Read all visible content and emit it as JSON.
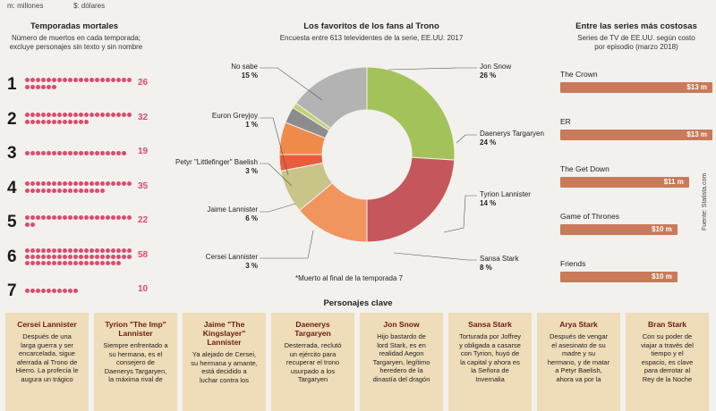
{
  "top_units": [
    "m: millones",
    "$: dólares"
  ],
  "left": {
    "title": "Temporadas mortales",
    "subtitle": [
      "Número de muertos en cada temporada;",
      "excluye personajes sin texto y sin nombre"
    ]
  },
  "center": {
    "title": "Los favoritos de los fans al Trono",
    "subtitle": "Encuesta entre 613 televidentes de la serie, EE.UU. 2017",
    "footnote": "*Muerto al final de la temporada 7"
  },
  "right": {
    "title": "Entre las series más costosas",
    "subtitle": [
      "Series de TV de EE.UU. según costo",
      "por episodio (marzo 2018)"
    ],
    "source": "Fuente: Statista.com"
  },
  "characters_title": "Personajes clave",
  "cards": [
    {
      "name": [
        "Cersei Lannister"
      ],
      "desc": [
        "Después de una",
        "larga guerra y ser",
        "encarcelada, sigue",
        "aferrada al Trono de",
        "Hierro. La profecía le",
        "augura un trágico"
      ]
    },
    {
      "name": [
        "Tyrion \"The Imp\"",
        "Lannister"
      ],
      "desc": [
        "Siempre enfrentado a",
        "su hermana, es el",
        "consejero de",
        "Daenerys Targaryen,",
        "la máxima rival de"
      ]
    },
    {
      "name": [
        "Jaime \"The",
        "Kingslayer\"",
        "Lannister"
      ],
      "desc": [
        "Ya alejado de Cersei,",
        "su hermana y amante,",
        "está decidido a",
        "luchar contra los"
      ]
    },
    {
      "name": [
        "Daenerys",
        "Targaryen"
      ],
      "desc": [
        "Desterrada, reclutó",
        "un ejército para",
        "recuperar el trono",
        "usurpado a los",
        "Targaryen"
      ]
    },
    {
      "name": [
        "Jon Snow"
      ],
      "desc": [
        "Hijo bastardo de",
        "lord Stark, es en",
        "realidad Aegon",
        "Targaryen, legítimo",
        "heredero de la",
        "dinastía del dragón"
      ]
    },
    {
      "name": [
        "Sansa Stark"
      ],
      "desc": [
        "Torturada por Joffrey",
        "y obligada a casarse",
        "con Tyrion, huyó de",
        "la capital y ahora es",
        "la Señora de",
        "Invernalia"
      ]
    },
    {
      "name": [
        "Arya Stark"
      ],
      "desc": [
        "Después de vengar",
        "el asesinato de su",
        "madre y su",
        "hermano, y de matar",
        "a Petyr Baelish,",
        "ahora va por la"
      ]
    },
    {
      "name": [
        "Bran Stark"
      ],
      "desc": [
        "Con su poder de",
        "viajar a través del",
        "tiempo y el",
        "espacio, es clave",
        "para derrotar al",
        "Rey de la Noche"
      ]
    }
  ],
  "chart_data": [
    {
      "type": "bar",
      "title": "Temporadas mortales",
      "categories": [
        "1",
        "2",
        "3",
        "4",
        "5",
        "6",
        "7"
      ],
      "values": [
        26,
        32,
        19,
        35,
        22,
        58,
        10
      ]
    },
    {
      "type": "pie",
      "title": "Los favoritos de los fans al Trono",
      "slices": [
        {
          "label": "Jon Snow",
          "value": 26,
          "display": "26 %",
          "color": "#a4c25a"
        },
        {
          "label": "Daenerys Targaryen",
          "value": 24,
          "display": "24 %",
          "color": "#c5565c"
        },
        {
          "label": "Tyrion Lannister",
          "value": 14,
          "display": "14 %",
          "color": "#f0955e"
        },
        {
          "label": "Sansa Stark",
          "value": 8,
          "display": "8 %",
          "color": "#c9c487"
        },
        {
          "label": "Cersei Lannister",
          "value": 3,
          "display": "3 %",
          "color": "#e85d3e"
        },
        {
          "label": "Jaime Lannister",
          "value": 6,
          "display": "6 %",
          "color": "#f08a4a"
        },
        {
          "label": "Petyr \"Littlefinger\" Baelish",
          "value": 3,
          "display": "3 %",
          "color": "#8c8c8c"
        },
        {
          "label": "Euron Greyjoy",
          "value": 1,
          "display": "1 %",
          "color": "#c3d070"
        },
        {
          "label": "No sabe",
          "value": 15,
          "display": "15 %",
          "color": "#b3b3b3"
        }
      ]
    },
    {
      "type": "bar",
      "title": "Entre las series más costosas",
      "categories": [
        "The Crown",
        "ER",
        "The Get Down",
        "Game of Thrones",
        "Friends"
      ],
      "values": [
        13,
        13,
        11,
        10,
        10
      ],
      "value_labels": [
        "$13 m",
        "$13 m",
        "$11 m",
        "$10 m",
        "$10 m"
      ]
    }
  ]
}
